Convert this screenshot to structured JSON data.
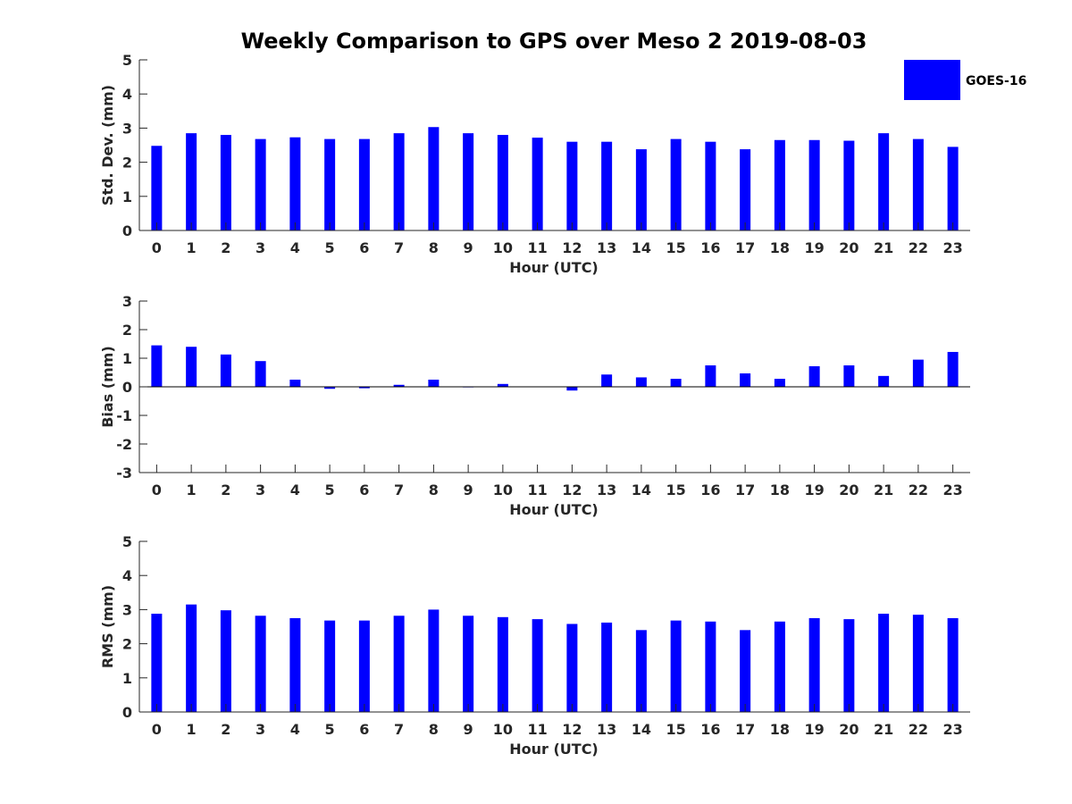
{
  "title": "Weekly Comparison to GPS over Meso 2 2019-08-03",
  "legend": {
    "label": "GOES-16",
    "placement": "top-right",
    "color": "#0000ff"
  },
  "colors": {
    "bar": "#0000ff",
    "axis": "#262626",
    "zero_line": "#000000"
  },
  "chart_data": [
    {
      "type": "bar",
      "name": "std-dev",
      "xlabel": "Hour (UTC)",
      "ylabel": "Std. Dev. (mm)",
      "ylim": [
        0,
        5
      ],
      "yticks": [
        0,
        1,
        2,
        3,
        4,
        5
      ],
      "categories": [
        "0",
        "1",
        "2",
        "3",
        "4",
        "5",
        "6",
        "7",
        "8",
        "9",
        "10",
        "11",
        "12",
        "13",
        "14",
        "15",
        "16",
        "17",
        "18",
        "19",
        "20",
        "21",
        "22",
        "23"
      ],
      "series": [
        {
          "name": "GOES-16",
          "values": [
            2.48,
            2.85,
            2.8,
            2.68,
            2.73,
            2.68,
            2.68,
            2.85,
            3.03,
            2.85,
            2.8,
            2.72,
            2.6,
            2.6,
            2.38,
            2.68,
            2.6,
            2.38,
            2.65,
            2.65,
            2.63,
            2.85,
            2.68,
            2.45
          ]
        }
      ]
    },
    {
      "type": "bar",
      "name": "bias",
      "xlabel": "Hour (UTC)",
      "ylabel": "Bias (mm)",
      "ylim": [
        -3,
        3
      ],
      "yticks": [
        -3,
        -2,
        -1,
        0,
        1,
        2,
        3
      ],
      "categories": [
        "0",
        "1",
        "2",
        "3",
        "4",
        "5",
        "6",
        "7",
        "8",
        "9",
        "10",
        "11",
        "12",
        "13",
        "14",
        "15",
        "16",
        "17",
        "18",
        "19",
        "20",
        "21",
        "22",
        "23"
      ],
      "series": [
        {
          "name": "GOES-16",
          "values": [
            1.45,
            1.4,
            1.13,
            0.9,
            0.25,
            -0.07,
            -0.05,
            0.07,
            0.25,
            -0.02,
            0.1,
            0.0,
            -0.13,
            0.43,
            0.33,
            0.28,
            0.75,
            0.47,
            0.28,
            0.72,
            0.75,
            0.38,
            0.95,
            1.22
          ]
        }
      ]
    },
    {
      "type": "bar",
      "name": "rms",
      "xlabel": "Hour (UTC)",
      "ylabel": "RMS (mm)",
      "ylim": [
        0,
        5
      ],
      "yticks": [
        0,
        1,
        2,
        3,
        4,
        5
      ],
      "categories": [
        "0",
        "1",
        "2",
        "3",
        "4",
        "5",
        "6",
        "7",
        "8",
        "9",
        "10",
        "11",
        "12",
        "13",
        "14",
        "15",
        "16",
        "17",
        "18",
        "19",
        "20",
        "21",
        "22",
        "23"
      ],
      "series": [
        {
          "name": "GOES-16",
          "values": [
            2.88,
            3.15,
            2.98,
            2.82,
            2.75,
            2.68,
            2.68,
            2.82,
            3.0,
            2.82,
            2.78,
            2.72,
            2.58,
            2.62,
            2.4,
            2.68,
            2.65,
            2.4,
            2.65,
            2.75,
            2.72,
            2.88,
            2.85,
            2.75
          ]
        }
      ]
    }
  ]
}
